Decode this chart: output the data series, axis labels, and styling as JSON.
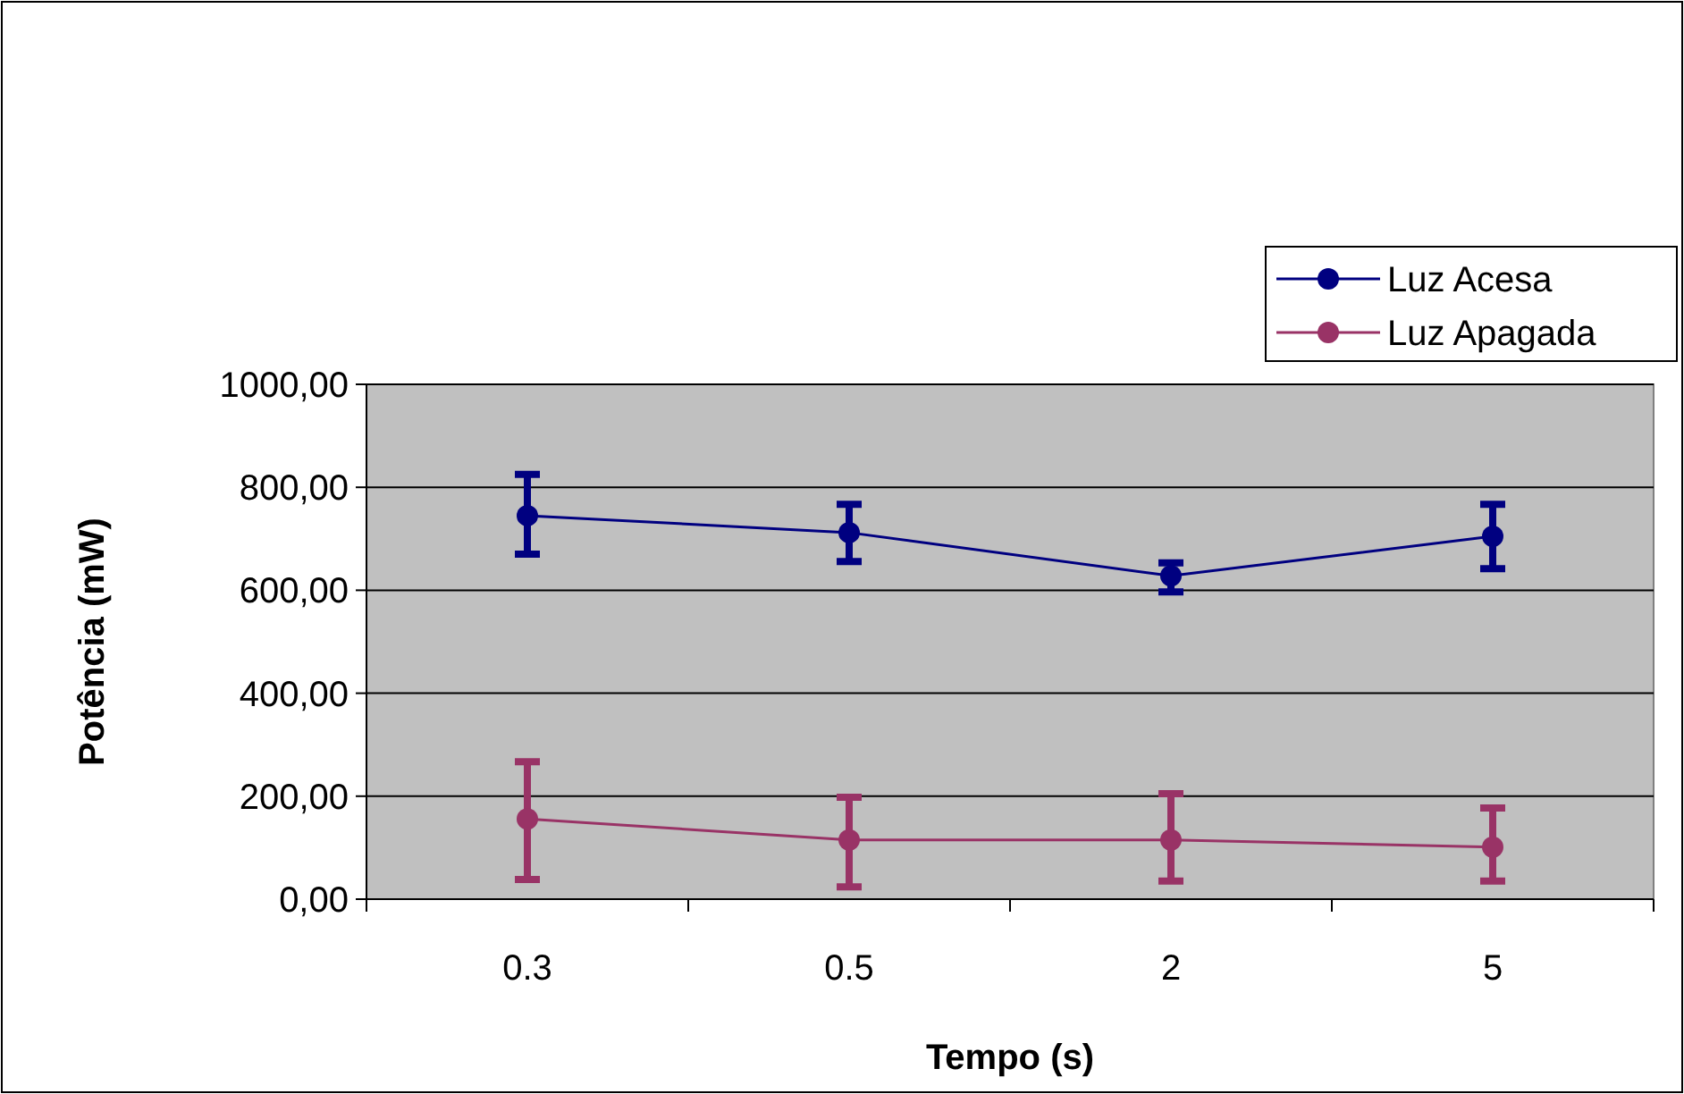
{
  "chart_data": {
    "type": "line",
    "xlabel": "Tempo (s)",
    "ylabel": "Potência (mW)",
    "categories": [
      "0.3",
      "0.5",
      "2",
      "5"
    ],
    "series": [
      {
        "name": "Luz Acesa",
        "color": "#000080",
        "values": [
          745,
          712,
          628,
          705
        ],
        "errors": [
          [
            670,
            825
          ],
          [
            656,
            767
          ],
          [
            597,
            653
          ],
          [
            642,
            767
          ]
        ]
      },
      {
        "name": "Luz Apagada",
        "color": "#993366",
        "values": [
          156,
          115,
          115,
          101
        ],
        "errors": [
          [
            38,
            267
          ],
          [
            24,
            198
          ],
          [
            35,
            205
          ],
          [
            35,
            177
          ]
        ]
      }
    ],
    "ylim": [
      0,
      1000
    ],
    "yticks": [
      {
        "value": 0,
        "label": "0,00"
      },
      {
        "value": 200,
        "label": "200,00"
      },
      {
        "value": 400,
        "label": "400,00"
      },
      {
        "value": 600,
        "label": "600,00"
      },
      {
        "value": 800,
        "label": "800,00"
      },
      {
        "value": 1000,
        "label": "1000,00"
      }
    ],
    "grid": "y",
    "legend": "top right",
    "marker": "circle",
    "line_style": "solid"
  }
}
